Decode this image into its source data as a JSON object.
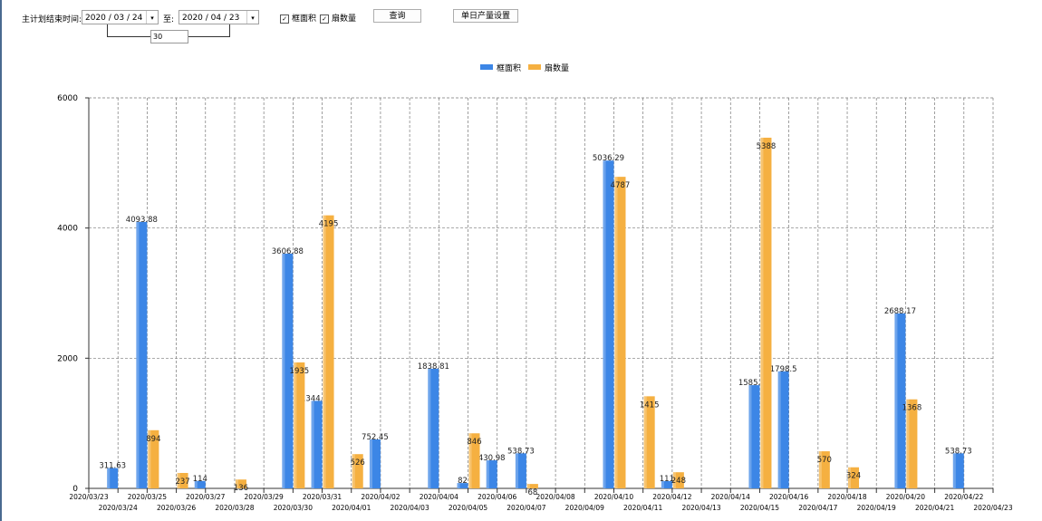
{
  "toolbar": {
    "label": "主计划结束时间:",
    "start_date": "2020 / 03 / 24",
    "to_label": "至:",
    "end_date": "2020 / 04 / 23",
    "days": "30",
    "check1": "框面积",
    "check2": "扇数量",
    "query": "查询",
    "settings": "单日产量设置"
  },
  "chart_data": {
    "type": "bar",
    "categories": [
      "2020/03/23",
      "2020/03/24",
      "2020/03/25",
      "2020/03/26",
      "2020/03/27",
      "2020/03/28",
      "2020/03/29",
      "2020/03/30",
      "2020/03/31",
      "2020/04/01",
      "2020/04/02",
      "2020/04/03",
      "2020/04/04",
      "2020/04/05",
      "2020/04/06",
      "2020/04/07",
      "2020/04/08",
      "2020/04/09",
      "2020/04/10",
      "2020/04/11",
      "2020/04/12",
      "2020/04/13",
      "2020/04/14",
      "2020/04/15",
      "2020/04/16",
      "2020/04/17",
      "2020/04/18",
      "2020/04/19",
      "2020/04/20",
      "2020/04/21",
      "2020/04/22",
      "2020/04/23"
    ],
    "series": [
      {
        "name": "框面积",
        "color": "#3c86e6",
        "values": [
          0,
          311.63,
          4093.88,
          0,
          114,
          0,
          0,
          3606.88,
          1344.95,
          0,
          752.45,
          0,
          1838.81,
          82,
          430.98,
          538.73,
          0,
          0,
          5036.29,
          0,
          111,
          0,
          0,
          1585.96,
          1798.5,
          0,
          0,
          0,
          2688.17,
          0,
          538.73,
          0
        ]
      },
      {
        "name": "扇数量",
        "color": "#f5b041",
        "values": [
          0,
          0,
          894,
          237,
          0,
          136,
          0,
          1935,
          4195,
          526,
          0,
          0,
          0,
          846,
          0,
          68,
          0,
          0,
          4787,
          1415,
          248,
          0,
          0,
          5388,
          0,
          570,
          324,
          0,
          1368,
          0,
          0,
          0
        ]
      }
    ],
    "ylim": [
      0,
      6000
    ],
    "yticks": [
      "0",
      "2000",
      "4000",
      "6000"
    ],
    "grid": true,
    "legend": "top-center"
  }
}
